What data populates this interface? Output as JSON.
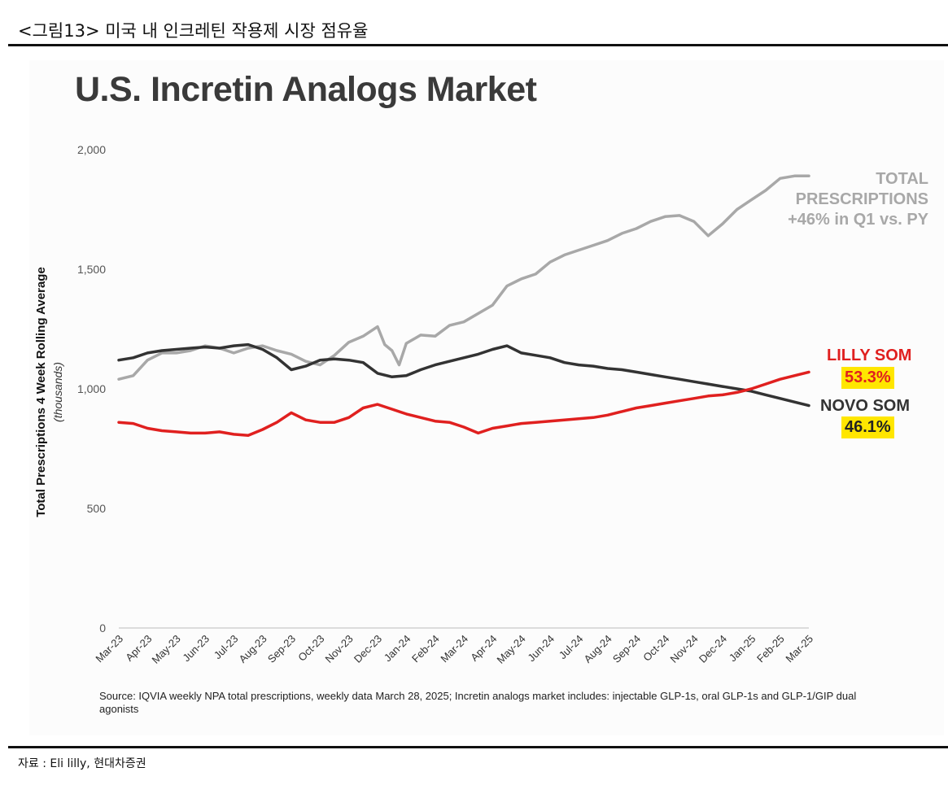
{
  "caption": "<그림13> 미국 내 인크레틴 작용제 시장 점유율",
  "source_footer": "자료 : Eli lilly, 현대차증권",
  "chart_data": {
    "type": "line",
    "title": "U.S. Incretin Analogs Market",
    "ylabel": "Total Prescriptions 4 Week Rolling Average",
    "ylabel_sub": "(thousands)",
    "ylim": [
      0,
      2000
    ],
    "yticks": [
      0,
      500,
      1000,
      1500,
      2000
    ],
    "ytick_labels": [
      "0",
      "500",
      "1,000",
      "1,500",
      "2,000"
    ],
    "categories": [
      "Mar-23",
      "Apr-23",
      "May-23",
      "Jun-23",
      "Jul-23",
      "Aug-23",
      "Sep-23",
      "Oct-23",
      "Nov-23",
      "Dec-23",
      "Jan-24",
      "Feb-24",
      "Mar-24",
      "Apr-24",
      "May-24",
      "Jun-24",
      "Jul-24",
      "Aug-24",
      "Sep-24",
      "Oct-24",
      "Nov-24",
      "Dec-24",
      "Jan-25",
      "Feb-25",
      "Mar-25"
    ],
    "grid": false,
    "series": [
      {
        "name": "TOTAL PRESCRIPTIONS",
        "color": "#a8a8a8",
        "x": [
          0,
          0.5,
          1,
          1.5,
          2,
          2.5,
          3,
          3.5,
          4,
          4.5,
          5,
          5.5,
          6,
          6.5,
          7,
          7.5,
          8,
          8.5,
          9,
          9.25,
          9.5,
          9.75,
          10,
          10.5,
          11,
          11.5,
          12,
          12.5,
          13,
          13.5,
          14,
          14.5,
          15,
          15.5,
          16,
          16.5,
          17,
          17.5,
          18,
          18.5,
          19,
          19.5,
          20,
          20.5,
          21,
          21.5,
          22,
          22.5,
          23,
          23.5,
          24
        ],
        "values": [
          1040,
          1055,
          1120,
          1150,
          1150,
          1160,
          1180,
          1170,
          1150,
          1170,
          1180,
          1160,
          1145,
          1115,
          1100,
          1140,
          1195,
          1220,
          1260,
          1185,
          1160,
          1100,
          1190,
          1225,
          1220,
          1265,
          1280,
          1315,
          1350,
          1430,
          1460,
          1480,
          1530,
          1560,
          1580,
          1600,
          1620,
          1650,
          1670,
          1700,
          1720,
          1725,
          1700,
          1640,
          1690,
          1750,
          1790,
          1830,
          1880,
          1890,
          1890
        ]
      },
      {
        "name": "NOVO SOM",
        "color": "#333333",
        "value_label": "46.1%",
        "x": [
          0,
          0.5,
          1,
          1.5,
          2,
          2.5,
          3,
          3.5,
          4,
          4.5,
          5,
          5.5,
          6,
          6.5,
          7,
          7.5,
          8,
          8.5,
          9,
          9.5,
          10,
          10.5,
          11,
          11.5,
          12,
          12.5,
          13,
          13.5,
          14,
          14.5,
          15,
          15.5,
          16,
          16.5,
          17,
          17.5,
          18,
          18.5,
          19,
          19.5,
          20,
          20.5,
          21,
          21.5,
          22,
          22.5,
          23,
          23.5,
          24
        ],
        "values": [
          1120,
          1130,
          1150,
          1160,
          1165,
          1170,
          1175,
          1170,
          1180,
          1185,
          1165,
          1130,
          1080,
          1095,
          1120,
          1125,
          1120,
          1110,
          1065,
          1050,
          1055,
          1080,
          1100,
          1115,
          1130,
          1145,
          1165,
          1180,
          1150,
          1140,
          1130,
          1110,
          1100,
          1095,
          1085,
          1080,
          1070,
          1060,
          1050,
          1040,
          1030,
          1020,
          1010,
          1000,
          990,
          975,
          960,
          945,
          930
        ]
      },
      {
        "name": "LILLY SOM",
        "color": "#e0201f",
        "value_label": "53.3%",
        "x": [
          0,
          0.5,
          1,
          1.5,
          2,
          2.5,
          3,
          3.5,
          4,
          4.5,
          5,
          5.5,
          6,
          6.5,
          7,
          7.5,
          8,
          8.5,
          9,
          9.5,
          10,
          10.5,
          11,
          11.5,
          12,
          12.5,
          13,
          13.5,
          14,
          14.5,
          15,
          15.5,
          16,
          16.5,
          17,
          17.5,
          18,
          18.5,
          19,
          19.5,
          20,
          20.5,
          21,
          21.5,
          22,
          22.5,
          23,
          23.5,
          24
        ],
        "values": [
          860,
          855,
          835,
          825,
          820,
          815,
          815,
          820,
          810,
          805,
          830,
          860,
          900,
          870,
          860,
          860,
          880,
          920,
          935,
          915,
          895,
          880,
          865,
          860,
          840,
          815,
          835,
          845,
          855,
          860,
          865,
          870,
          875,
          880,
          890,
          905,
          920,
          930,
          940,
          950,
          960,
          970,
          975,
          985,
          1000,
          1020,
          1040,
          1055,
          1070
        ]
      }
    ],
    "annotations": {
      "total": [
        "TOTAL",
        "PRESCRIPTIONS",
        "+46% in Q1 vs. PY"
      ]
    },
    "note": "Source: IQVIA weekly NPA total prescriptions, weekly data March 28, 2025; Incretin analogs market includes: injectable GLP-1s, oral GLP-1s and GLP-1/GIP dual agonists"
  }
}
